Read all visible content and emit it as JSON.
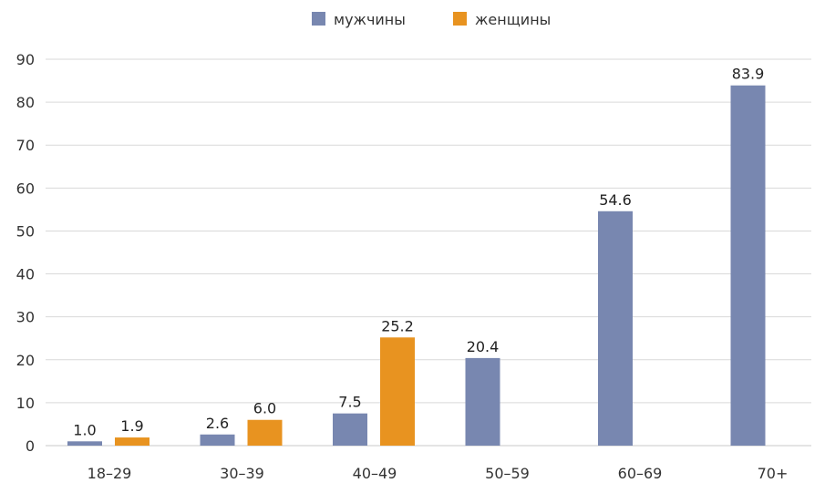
{
  "chart_data": {
    "type": "bar",
    "categories": [
      "18–29",
      "30–39",
      "40–49",
      "50–59",
      "60–69",
      "70+"
    ],
    "series": [
      {
        "name": "мужчины",
        "color": "#7887b0",
        "values": [
          1.0,
          2.6,
          7.5,
          20.4,
          54.6,
          83.9
        ]
      },
      {
        "name": "женщины",
        "color": "#e89320",
        "values": [
          1.9,
          6.0,
          25.2,
          null,
          null,
          null
        ]
      }
    ],
    "data_labels": [
      [
        "1.0",
        "2.6",
        "7.5",
        "20.4",
        "54.6",
        "83.9"
      ],
      [
        "1.9",
        "6.0",
        "25.2",
        null,
        null,
        null
      ]
    ],
    "y_ticks": [
      "0",
      "10",
      "20",
      "30",
      "40",
      "50",
      "60",
      "70",
      "80",
      "90"
    ],
    "ylim": [
      0,
      90
    ],
    "grid": true,
    "legend_position": "top-center"
  }
}
